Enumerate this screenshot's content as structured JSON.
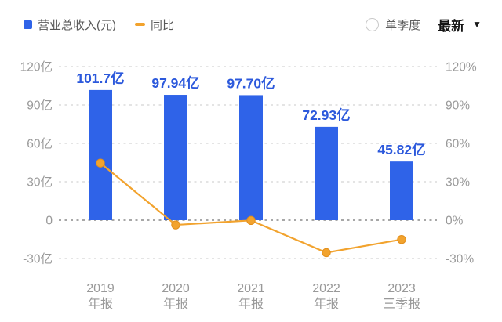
{
  "header": {
    "legend": [
      {
        "label": "营业总收入(元)",
        "marker": "square",
        "color": "#2F63E8"
      },
      {
        "label": "同比",
        "marker": "dash",
        "color": "#F2A32E"
      }
    ],
    "controls": {
      "radio_label": "单季度",
      "radio_selected": false,
      "dropdown_label": "最新",
      "caret": "▼"
    }
  },
  "chart_data": {
    "type": "combo (bar + line)",
    "title": "",
    "categories": [
      "2019 年报",
      "2020 年报",
      "2021 年报",
      "2022 年报",
      "2023 三季报"
    ],
    "category_lines": [
      [
        "2019",
        "年报"
      ],
      [
        "2020",
        "年报"
      ],
      [
        "2021",
        "年报"
      ],
      [
        "2022",
        "年报"
      ],
      [
        "2023",
        "三季报"
      ]
    ],
    "series": [
      {
        "name": "营业总收入(元)",
        "type": "bar",
        "axis": "left",
        "unit": "亿",
        "color": "#2F63E8",
        "label_color": "#2C59DC",
        "values": [
          101.7,
          97.94,
          97.7,
          72.93,
          45.82
        ],
        "data_labels": [
          "101.7亿",
          "97.94亿",
          "97.70亿",
          "72.93亿",
          "45.82亿"
        ]
      },
      {
        "name": "同比",
        "type": "line",
        "axis": "right",
        "unit": "%",
        "color": "#F2A32E",
        "point_stroke": "#E28F1C",
        "values": [
          44.6,
          -3.7,
          -0.2,
          -25.4,
          -15.1
        ]
      }
    ],
    "left_axis": {
      "min": -30,
      "max": 120,
      "step": 30,
      "ticks": [
        {
          "label": "120亿",
          "value": 120
        },
        {
          "label": "90亿",
          "value": 90
        },
        {
          "label": "60亿",
          "value": 60
        },
        {
          "label": "30亿",
          "value": 30
        },
        {
          "label": "0",
          "value": 0
        },
        {
          "label": "-30亿",
          "value": -30
        }
      ]
    },
    "right_axis": {
      "min": -30,
      "max": 120,
      "step": 30,
      "ticks": [
        {
          "label": "120%",
          "value": 120
        },
        {
          "label": "90%",
          "value": 90
        },
        {
          "label": "60%",
          "value": 60
        },
        {
          "label": "30%",
          "value": 30
        },
        {
          "label": "0%",
          "value": 0
        },
        {
          "label": "-30%",
          "value": -30
        }
      ]
    },
    "grid": "horizontal-dashed",
    "grid_color": "#dcdcdc",
    "zero_line_color": "#8a8a8a",
    "axis_text_color": "#999999",
    "legend_position": "top-left"
  }
}
